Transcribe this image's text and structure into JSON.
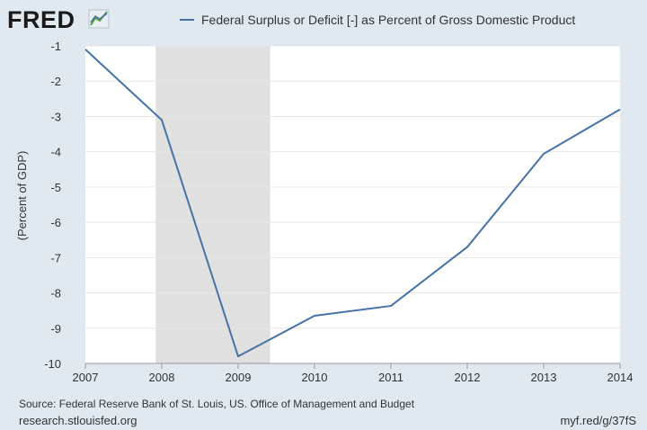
{
  "brand": {
    "logo_text": "FRED"
  },
  "colors": {
    "series": "#4572a7",
    "recession": "#e0e0e0",
    "plot_bg": "#ffffff",
    "page_bg": "#e1e9f0",
    "grid": "#e6e6e6"
  },
  "chart_data": {
    "type": "line",
    "title": "",
    "xlabel": "",
    "ylabel": "(Percent of GDP)",
    "x": [
      "2007",
      "2008",
      "2009",
      "2010",
      "2011",
      "2012",
      "2013",
      "2014"
    ],
    "series": [
      {
        "name": "Federal Surplus or Deficit [-] as Percent of Gross Domestic Product",
        "values": [
          -1.1,
          -3.1,
          -9.8,
          -8.65,
          -8.37,
          -6.7,
          -4.06,
          -2.8
        ]
      }
    ],
    "x_ticks": [
      "2007",
      "2008",
      "2009",
      "2010",
      "2011",
      "2012",
      "2013",
      "2014"
    ],
    "y_ticks": [
      "-1",
      "-2",
      "-3",
      "-4",
      "-5",
      "-6",
      "-7",
      "-8",
      "-9",
      "-10"
    ],
    "ylim": [
      -10,
      -1
    ],
    "xlim": [
      2007,
      2014
    ],
    "recession_shading": [
      {
        "start": 2007.92,
        "end": 2009.42
      }
    ],
    "grid": true,
    "legend_position": "top"
  },
  "source_text": "Source: Federal Reserve Bank of St. Louis, US. Office of Management and Budget",
  "footer": {
    "left": "research.stlouisfed.org",
    "right": "myf.red/g/37fS"
  }
}
